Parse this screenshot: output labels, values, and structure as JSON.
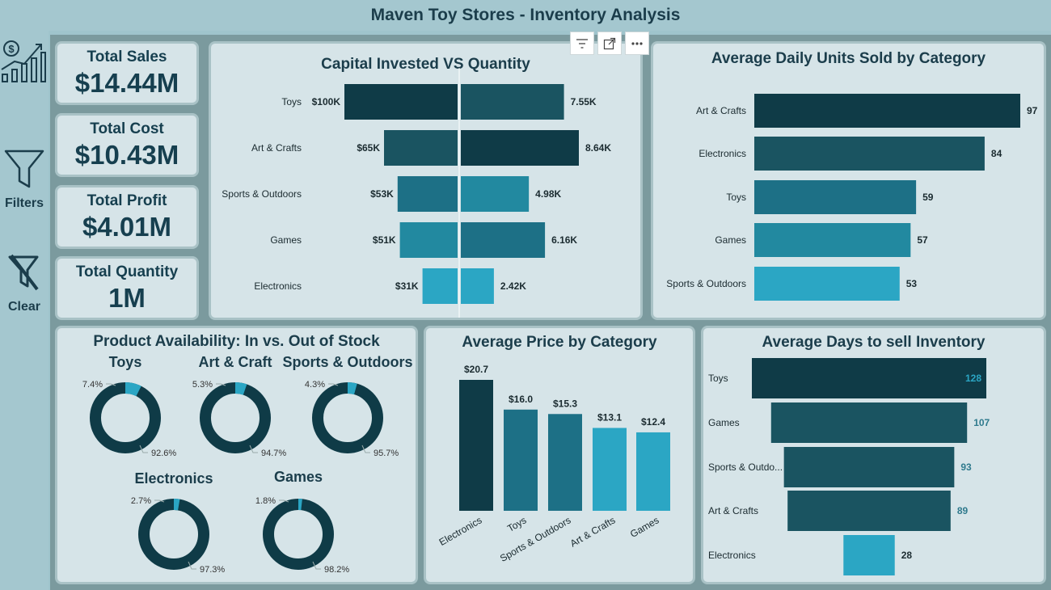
{
  "header": {
    "title": "Maven Toy Stores - Inventory Analysis"
  },
  "sidebar": {
    "growth_icon": "sales-growth-icon",
    "filters_label": "Filters",
    "clear_label": "Clear"
  },
  "kpis": [
    {
      "label": "Total Sales",
      "value": "$14.44M"
    },
    {
      "label": "Total Cost",
      "value": "$10.43M"
    },
    {
      "label": "Total Profit",
      "value": "$4.01M"
    },
    {
      "label": "Total Quantity",
      "value": "1M"
    }
  ],
  "toolbar": {
    "icons": [
      "filter-icon",
      "focus-mode-icon",
      "more-options-icon"
    ]
  },
  "colors": {
    "darkest": "#0f3b47",
    "dark": "#1a5461",
    "mid": "#1d7086",
    "midlight": "#2289a0",
    "light": "#2ba6c4",
    "panel": "#d6e4e8"
  },
  "capital_chart": {
    "title": "Capital Invested  VS  Quantity",
    "categories": [
      "Toys",
      "Art & Crafts",
      "Sports & Outdoors",
      "Games",
      "Electronics"
    ],
    "capital": {
      "values": [
        100,
        65,
        53,
        51,
        31
      ],
      "labels": [
        "$100K",
        "$65K",
        "$53K",
        "$51K",
        "$31K"
      ]
    },
    "quantity": {
      "values": [
        7.55,
        8.64,
        4.98,
        6.16,
        2.42
      ],
      "labels": [
        "7.55K",
        "8.64K",
        "4.98K",
        "6.16K",
        "2.42K"
      ]
    }
  },
  "daily_units": {
    "title": "Average Daily Units Sold by Category",
    "categories": [
      "Art & Crafts",
      "Electronics",
      "Toys",
      "Games",
      "Sports & Outdoors"
    ],
    "values": [
      97,
      84,
      59,
      57,
      53
    ]
  },
  "availability": {
    "title": "Product Availability: In vs. Out of Stock",
    "donuts": [
      {
        "name": "Toys",
        "out_label": "7.4%",
        "in_label": "92.6%",
        "out_pct": 7.4
      },
      {
        "name": "Art & Craft",
        "out_label": "5.3%",
        "in_label": "94.7%",
        "out_pct": 5.3
      },
      {
        "name": "Sports & Outdoors",
        "out_label": "4.3%",
        "in_label": "95.7%",
        "out_pct": 4.3
      },
      {
        "name": "Electronics",
        "out_label": "2.7%",
        "in_label": "97.3%",
        "out_pct": 2.7
      },
      {
        "name": "Games",
        "out_label": "1.8%",
        "in_label": "98.2%",
        "out_pct": 1.8
      }
    ]
  },
  "avg_price": {
    "title": "Average Price by Category",
    "categories": [
      "Electronics",
      "Toys",
      "Sports & Outdoors",
      "Art & Crafts",
      "Games"
    ],
    "values": [
      20.7,
      16.0,
      15.3,
      13.1,
      12.4
    ],
    "labels": [
      "$20.7",
      "$16.0",
      "$15.3",
      "$13.1",
      "$12.4"
    ]
  },
  "days_to_sell": {
    "title": "Average Days to sell Inventory",
    "categories": [
      "Toys",
      "Games",
      "Sports & Outdo...",
      "Art & Crafts",
      "Electronics"
    ],
    "values": [
      128,
      107,
      93,
      89,
      28
    ]
  },
  "chart_data": [
    {
      "type": "bar",
      "title": "Capital Invested  VS  Quantity",
      "categories": [
        "Toys",
        "Art & Crafts",
        "Sports & Outdoors",
        "Games",
        "Electronics"
      ],
      "series": [
        {
          "name": "Capital Invested",
          "values": [
            100000,
            65000,
            53000,
            51000,
            31000
          ]
        },
        {
          "name": "Quantity",
          "values": [
            7550,
            8640,
            4980,
            6160,
            2420
          ]
        }
      ]
    },
    {
      "type": "bar",
      "title": "Average Daily Units Sold by Category",
      "categories": [
        "Art & Crafts",
        "Electronics",
        "Toys",
        "Games",
        "Sports & Outdoors"
      ],
      "values": [
        97,
        84,
        59,
        57,
        53
      ]
    },
    {
      "type": "pie",
      "title": "Product Availability: In vs. Out of Stock",
      "categories": [
        "Toys",
        "Art & Craft",
        "Sports & Outdoors",
        "Electronics",
        "Games"
      ],
      "values": [
        7.4,
        5.3,
        4.3,
        2.7,
        1.8
      ]
    },
    {
      "type": "bar",
      "title": "Average Price by Category",
      "categories": [
        "Electronics",
        "Toys",
        "Sports & Outdoors",
        "Art & Crafts",
        "Games"
      ],
      "values": [
        20.7,
        16.0,
        15.3,
        13.1,
        12.4
      ]
    },
    {
      "type": "bar",
      "title": "Average Days to sell Inventory",
      "categories": [
        "Toys",
        "Games",
        "Sports & Outdo...",
        "Art & Crafts",
        "Electronics"
      ],
      "values": [
        128,
        107,
        93,
        89,
        28
      ]
    }
  ]
}
